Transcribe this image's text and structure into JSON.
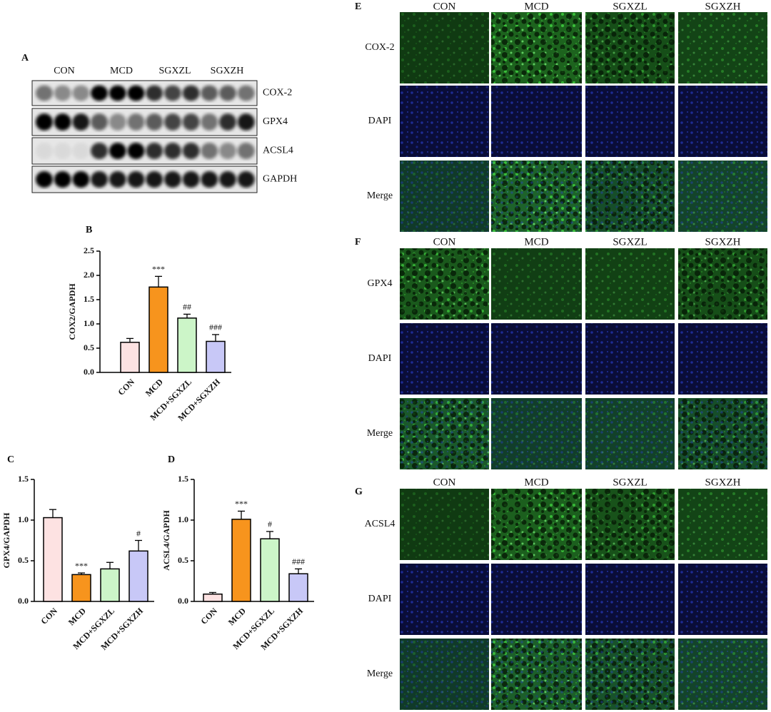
{
  "panel_a": {
    "label": "A",
    "groups": [
      "CON",
      "MCD",
      "SGXZL",
      "SGXZH"
    ],
    "rows": [
      "COX-2",
      "GPX4",
      "ACSL4",
      "GAPDH"
    ]
  },
  "chart_data": [
    {
      "type": "bar",
      "label": "B",
      "ylabel": "COX2/GAPDH",
      "categories": [
        "CON",
        "MCD",
        "MCD+SGXZL",
        "MCD+SGXZH"
      ],
      "values": [
        0.62,
        1.76,
        1.12,
        0.64
      ],
      "errors": [
        0.08,
        0.22,
        0.08,
        0.14
      ],
      "annotations": [
        null,
        "***",
        "##",
        "###"
      ],
      "colors": [
        "#fde2e2",
        "#f7941d",
        "#ccf5c8",
        "#c8c8f7"
      ],
      "ylim": [
        0,
        2.5
      ],
      "yticks": [
        {
          "value": 0,
          "label": "0.0"
        },
        0.5,
        {
          "value": 1,
          "label": "1.0"
        },
        1.5,
        {
          "value": 2,
          "label": "2.0"
        },
        2.5
      ]
    },
    {
      "type": "bar",
      "label": "C",
      "ylabel": "GPX4/GAPDH",
      "categories": [
        "CON",
        "MCD",
        "MCD+SGXZL",
        "MCD+SGXZH"
      ],
      "values": [
        1.03,
        0.33,
        0.4,
        0.62
      ],
      "errors": [
        0.1,
        0.02,
        0.08,
        0.13
      ],
      "annotations": [
        null,
        "***",
        null,
        "#"
      ],
      "colors": [
        "#fde2e2",
        "#f7941d",
        "#ccf5c8",
        "#c8c8f7"
      ],
      "ylim": [
        0,
        1.5
      ],
      "yticks": [
        {
          "value": 0,
          "label": "0.0"
        },
        0.5,
        {
          "value": 1,
          "label": "1.0"
        },
        1.5
      ]
    },
    {
      "type": "bar",
      "label": "D",
      "ylabel": "ACSL4/GAPDH",
      "categories": [
        "CON",
        "MCD",
        "MCD+SGXZL",
        "MCD+SGXZH"
      ],
      "values": [
        0.09,
        1.01,
        0.77,
        0.34
      ],
      "errors": [
        0.02,
        0.1,
        0.09,
        0.06
      ],
      "annotations": [
        null,
        "***",
        "#",
        "###"
      ],
      "colors": [
        "#fde2e2",
        "#f7941d",
        "#ccf5c8",
        "#c8c8f7"
      ],
      "ylim": [
        0,
        1.5
      ],
      "yticks": [
        {
          "value": 0,
          "label": "0.0"
        },
        0.5,
        {
          "value": 1,
          "label": "1.0"
        },
        1.5
      ]
    }
  ],
  "panel_e": {
    "label": "E",
    "columns": [
      "CON",
      "MCD",
      "SGXZL",
      "SGXZH"
    ],
    "rows": [
      "COX-2",
      "DAPI",
      "Merge"
    ]
  },
  "panel_f": {
    "label": "F",
    "columns": [
      "CON",
      "MCD",
      "SGXZL",
      "SGXZH"
    ],
    "rows": [
      "GPX4",
      "DAPI",
      "Merge"
    ]
  },
  "panel_g": {
    "label": "G",
    "columns": [
      "CON",
      "MCD",
      "SGXZL",
      "SGXZH"
    ],
    "rows": [
      "ACSL4",
      "DAPI",
      "Merge"
    ]
  }
}
